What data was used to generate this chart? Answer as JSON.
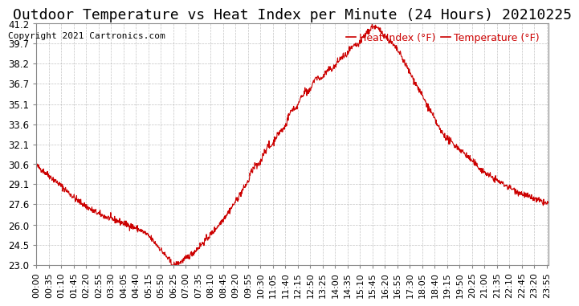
{
  "title": "Outdoor Temperature vs Heat Index per Minute (24 Hours) 20210225",
  "copyright": "Copyright 2021 Cartronics.com",
  "yticks": [
    23.0,
    24.5,
    26.0,
    27.6,
    29.1,
    30.6,
    32.1,
    33.6,
    35.1,
    36.7,
    38.2,
    39.7,
    41.2
  ],
  "ymin": 23.0,
  "ymax": 41.2,
  "line_color": "#cc0000",
  "legend_heat_index": "Heat Index (°F)",
  "legend_temperature": "Temperature (°F)",
  "legend_color": "#cc0000",
  "bg_color": "#ffffff",
  "grid_color": "#aaaaaa",
  "title_fontsize": 13,
  "copyright_fontsize": 8,
  "tick_fontsize": 8.5,
  "legend_fontsize": 9
}
